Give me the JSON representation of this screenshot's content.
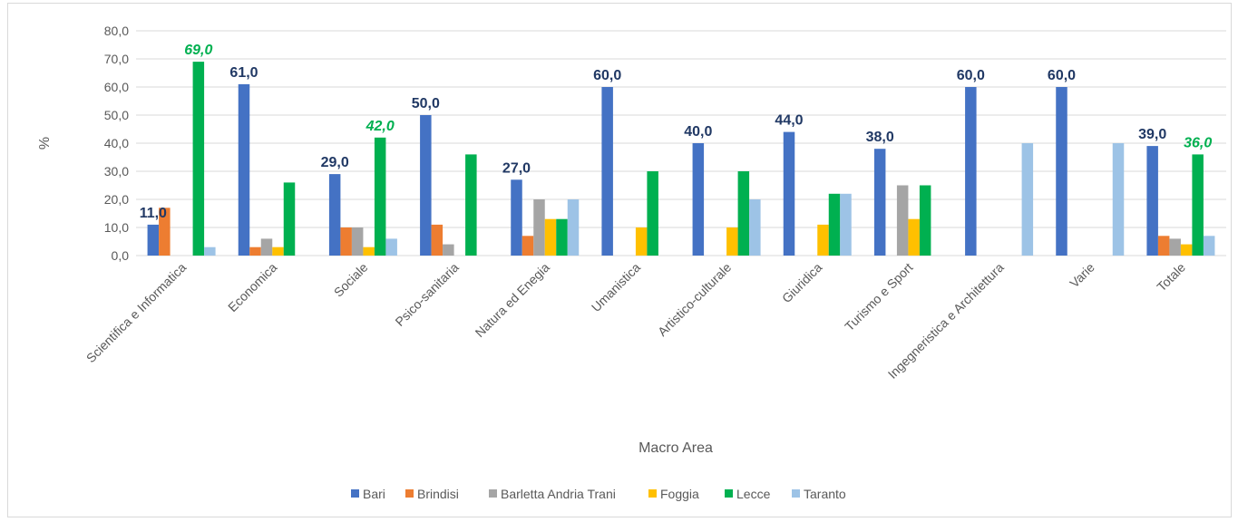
{
  "chart_data": {
    "type": "bar",
    "title": "",
    "xlabel": "Macro Area",
    "ylabel": "%",
    "ylim": [
      0,
      80
    ],
    "yticks": [
      0,
      10,
      20,
      30,
      40,
      50,
      60,
      70,
      80
    ],
    "ytick_labels": [
      "0,0",
      "10,0",
      "20,0",
      "30,0",
      "40,0",
      "50,0",
      "60,0",
      "70,0",
      "80,0"
    ],
    "grid": true,
    "legend_position": "bottom",
    "categories": [
      "Scientifica e Informatica",
      "Economica",
      "Sociale",
      "Psico-sanitaria",
      "Natura ed Enegia",
      "Umanistica",
      "Artistico-culturale",
      "Giuridica",
      "Turismo e Sport",
      "Ingegneristica e Architettura",
      "Varie",
      "Totale"
    ],
    "series": [
      {
        "name": "Bari",
        "color": "#4472c4",
        "values": [
          11,
          61,
          29,
          50,
          27,
          60,
          40,
          44,
          38,
          60,
          60,
          39
        ]
      },
      {
        "name": "Brindisi",
        "color": "#ed7d31",
        "values": [
          17,
          3,
          10,
          11,
          7,
          0,
          0,
          0,
          0,
          0,
          0,
          7
        ]
      },
      {
        "name": "Barletta Andria Trani",
        "color": "#a5a5a5",
        "values": [
          0,
          6,
          10,
          4,
          20,
          0,
          0,
          0,
          25,
          0,
          0,
          6
        ]
      },
      {
        "name": "Foggia",
        "color": "#ffc000",
        "values": [
          0,
          3,
          3,
          0,
          13,
          10,
          10,
          11,
          13,
          0,
          0,
          4
        ]
      },
      {
        "name": "Lecce",
        "color": "#00b050",
        "values": [
          69,
          26,
          42,
          36,
          13,
          30,
          30,
          22,
          25,
          0,
          0,
          36
        ]
      },
      {
        "name": "Taranto",
        "color": "#9dc3e6",
        "values": [
          3,
          0,
          6,
          0,
          20,
          0,
          20,
          22,
          0,
          40,
          40,
          7
        ]
      }
    ],
    "data_labels": {
      "bari": [
        "11,0",
        "61,0",
        "29,0",
        "50,0",
        "27,0",
        "60,0",
        "40,0",
        "44,0",
        "38,0",
        "60,0",
        "60,0",
        "39,0"
      ],
      "lecce": [
        {
          "index": 0,
          "text": "69,0"
        },
        {
          "index": 2,
          "text": "42,0"
        },
        {
          "index": 11,
          "text": "36,0"
        }
      ]
    },
    "colors": {
      "bari_label": "#203864",
      "lecce_label": "#00b050",
      "grid": "#d9d9d9"
    }
  }
}
